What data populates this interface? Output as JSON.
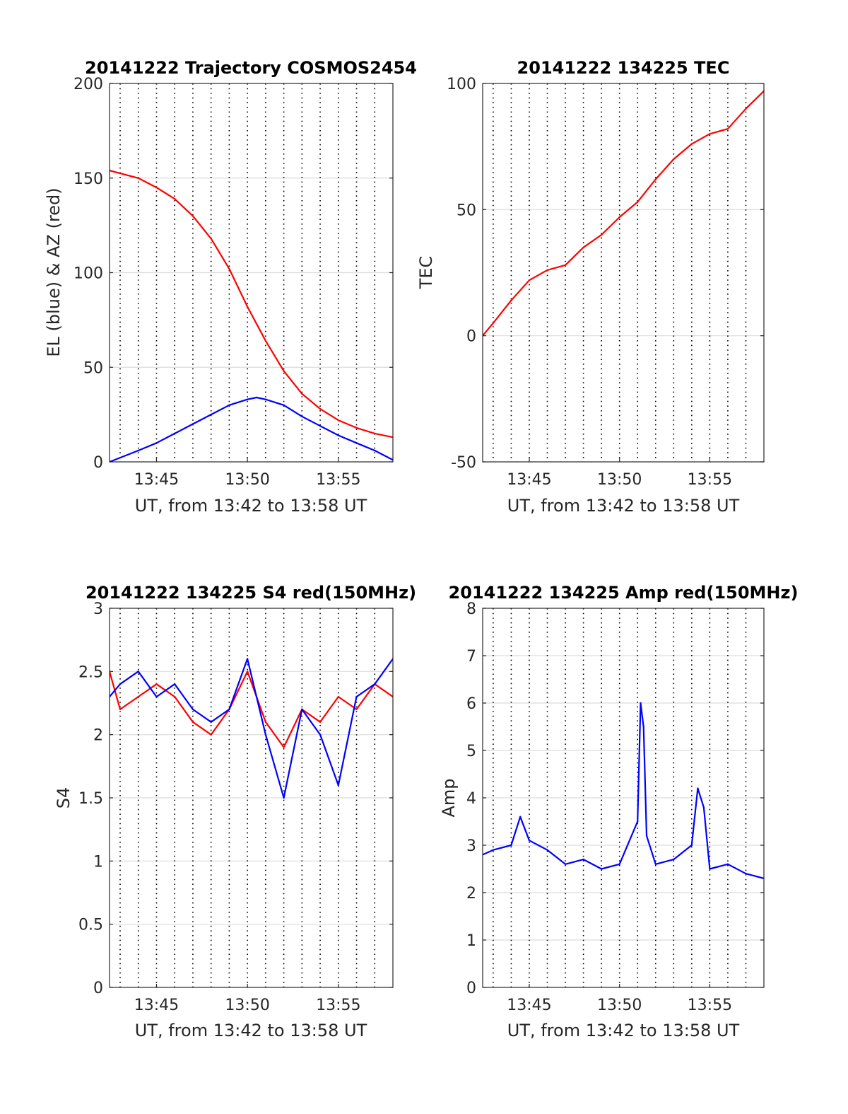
{
  "chart_data": [
    {
      "type": "line",
      "title": "20141222 Trajectory COSMOS2454",
      "xlabel": "UT, from 13:42 to 13:58 UT",
      "ylabel": "EL (blue) & AZ (red)",
      "xlim": [
        "13:42:25",
        "13:58:00"
      ],
      "ylim": [
        0,
        200
      ],
      "yticks": [
        "0",
        "50",
        "100",
        "150",
        "200"
      ],
      "xticks": [
        "13:45",
        "13:50",
        "13:55"
      ],
      "grid": true,
      "series": [
        {
          "color": "#ff0000",
          "x": [
            "13:42:25",
            "13:44:00",
            "13:45:00",
            "13:46:00",
            "13:47:00",
            "13:48:00",
            "13:49:00",
            "13:50:00",
            "13:51:00",
            "13:52:00",
            "13:53:00",
            "13:54:00",
            "13:55:00",
            "13:56:00",
            "13:57:00",
            "13:58:00"
          ],
          "values": [
            154,
            150,
            145,
            139,
            130,
            118,
            102,
            82,
            64,
            48,
            36,
            28,
            22,
            18,
            15,
            13
          ]
        },
        {
          "color": "#0000ff",
          "x": [
            "13:42:25",
            "13:44:00",
            "13:45:00",
            "13:46:00",
            "13:47:00",
            "13:48:00",
            "13:49:00",
            "13:50:00",
            "13:50:30",
            "13:51:00",
            "13:52:00",
            "13:53:00",
            "13:54:00",
            "13:55:00",
            "13:56:00",
            "13:57:00",
            "13:58:00"
          ],
          "values": [
            0,
            6,
            10,
            15,
            20,
            25,
            30,
            33,
            34,
            33,
            30,
            24,
            19,
            14,
            10,
            6,
            1
          ]
        }
      ]
    },
    {
      "type": "line",
      "title": "20141222 134225 TEC",
      "xlabel": "UT, from 13:42 to 13:58 UT",
      "ylabel": "TEC",
      "xlim": [
        "13:42:25",
        "13:58:00"
      ],
      "ylim": [
        -50,
        100
      ],
      "yticks": [
        "-50",
        "0",
        "50",
        "100"
      ],
      "xticks": [
        "13:45",
        "13:50",
        "13:55"
      ],
      "grid": true,
      "series": [
        {
          "color": "#ff0000",
          "x": [
            "13:42:25",
            "13:43:00",
            "13:44:00",
            "13:45:00",
            "13:46:00",
            "13:47:00",
            "13:48:00",
            "13:49:00",
            "13:50:00",
            "13:51:00",
            "13:52:00",
            "13:53:00",
            "13:54:00",
            "13:55:00",
            "13:56:00",
            "13:57:00",
            "13:58:00"
          ],
          "values": [
            0,
            5,
            14,
            22,
            26,
            28,
            35,
            40,
            47,
            53,
            62,
            70,
            76,
            80,
            82,
            90,
            97
          ]
        }
      ]
    },
    {
      "type": "line",
      "title": "20141222 134225 S4 red(150MHz)",
      "xlabel": "UT, from 13:42 to 13:58 UT",
      "ylabel": "S4",
      "xlim": [
        "13:42:25",
        "13:58:00"
      ],
      "ylim": [
        0,
        3
      ],
      "yticks": [
        "0",
        "0.5",
        "1",
        "1.5",
        "2",
        "2.5",
        "3"
      ],
      "xticks": [
        "13:45",
        "13:50",
        "13:55"
      ],
      "grid": true,
      "series": [
        {
          "color": "#ff0000",
          "x": [
            "13:42:25",
            "13:43:00",
            "13:44:00",
            "13:45:00",
            "13:46:00",
            "13:47:00",
            "13:48:00",
            "13:49:00",
            "13:50:00",
            "13:51:00",
            "13:52:00",
            "13:53:00",
            "13:54:00",
            "13:55:00",
            "13:56:00",
            "13:57:00",
            "13:58:00"
          ],
          "values": [
            2.5,
            2.2,
            2.3,
            2.4,
            2.3,
            2.1,
            2.0,
            2.2,
            2.5,
            2.1,
            1.9,
            2.2,
            2.1,
            2.3,
            2.2,
            2.4,
            2.3
          ]
        },
        {
          "color": "#0000ff",
          "x": [
            "13:42:25",
            "13:43:00",
            "13:44:00",
            "13:45:00",
            "13:46:00",
            "13:47:00",
            "13:48:00",
            "13:49:00",
            "13:50:00",
            "13:51:00",
            "13:52:00",
            "13:53:00",
            "13:54:00",
            "13:55:00",
            "13:56:00",
            "13:57:00",
            "13:58:00"
          ],
          "values": [
            2.3,
            2.4,
            2.5,
            2.3,
            2.4,
            2.2,
            2.1,
            2.2,
            2.6,
            2.0,
            1.5,
            2.2,
            2.0,
            1.6,
            2.3,
            2.4,
            2.6
          ]
        }
      ]
    },
    {
      "type": "line",
      "title": "20141222 134225 Amp red(150MHz)",
      "xlabel": "UT, from 13:42 to 13:58 UT",
      "ylabel": "Amp",
      "xlim": [
        "13:42:25",
        "13:58:00"
      ],
      "ylim": [
        0,
        8
      ],
      "yticks": [
        "0",
        "1",
        "2",
        "3",
        "4",
        "5",
        "6",
        "7",
        "8"
      ],
      "xticks": [
        "13:45",
        "13:50",
        "13:55"
      ],
      "grid": true,
      "series": [
        {
          "color": "#0000ff",
          "x": [
            "13:42:25",
            "13:43:00",
            "13:44:00",
            "13:44:30",
            "13:45:00",
            "13:46:00",
            "13:47:00",
            "13:48:00",
            "13:49:00",
            "13:50:00",
            "13:51:00",
            "13:51:10",
            "13:51:20",
            "13:51:30",
            "13:52:00",
            "13:53:00",
            "13:54:00",
            "13:54:20",
            "13:54:40",
            "13:55:00",
            "13:56:00",
            "13:57:00",
            "13:58:00"
          ],
          "values": [
            2.8,
            2.9,
            3.0,
            3.6,
            3.1,
            2.9,
            2.6,
            2.7,
            2.5,
            2.6,
            3.5,
            6.0,
            5.5,
            3.2,
            2.6,
            2.7,
            3.0,
            4.2,
            3.8,
            2.5,
            2.6,
            2.4,
            2.3
          ]
        }
      ]
    }
  ]
}
